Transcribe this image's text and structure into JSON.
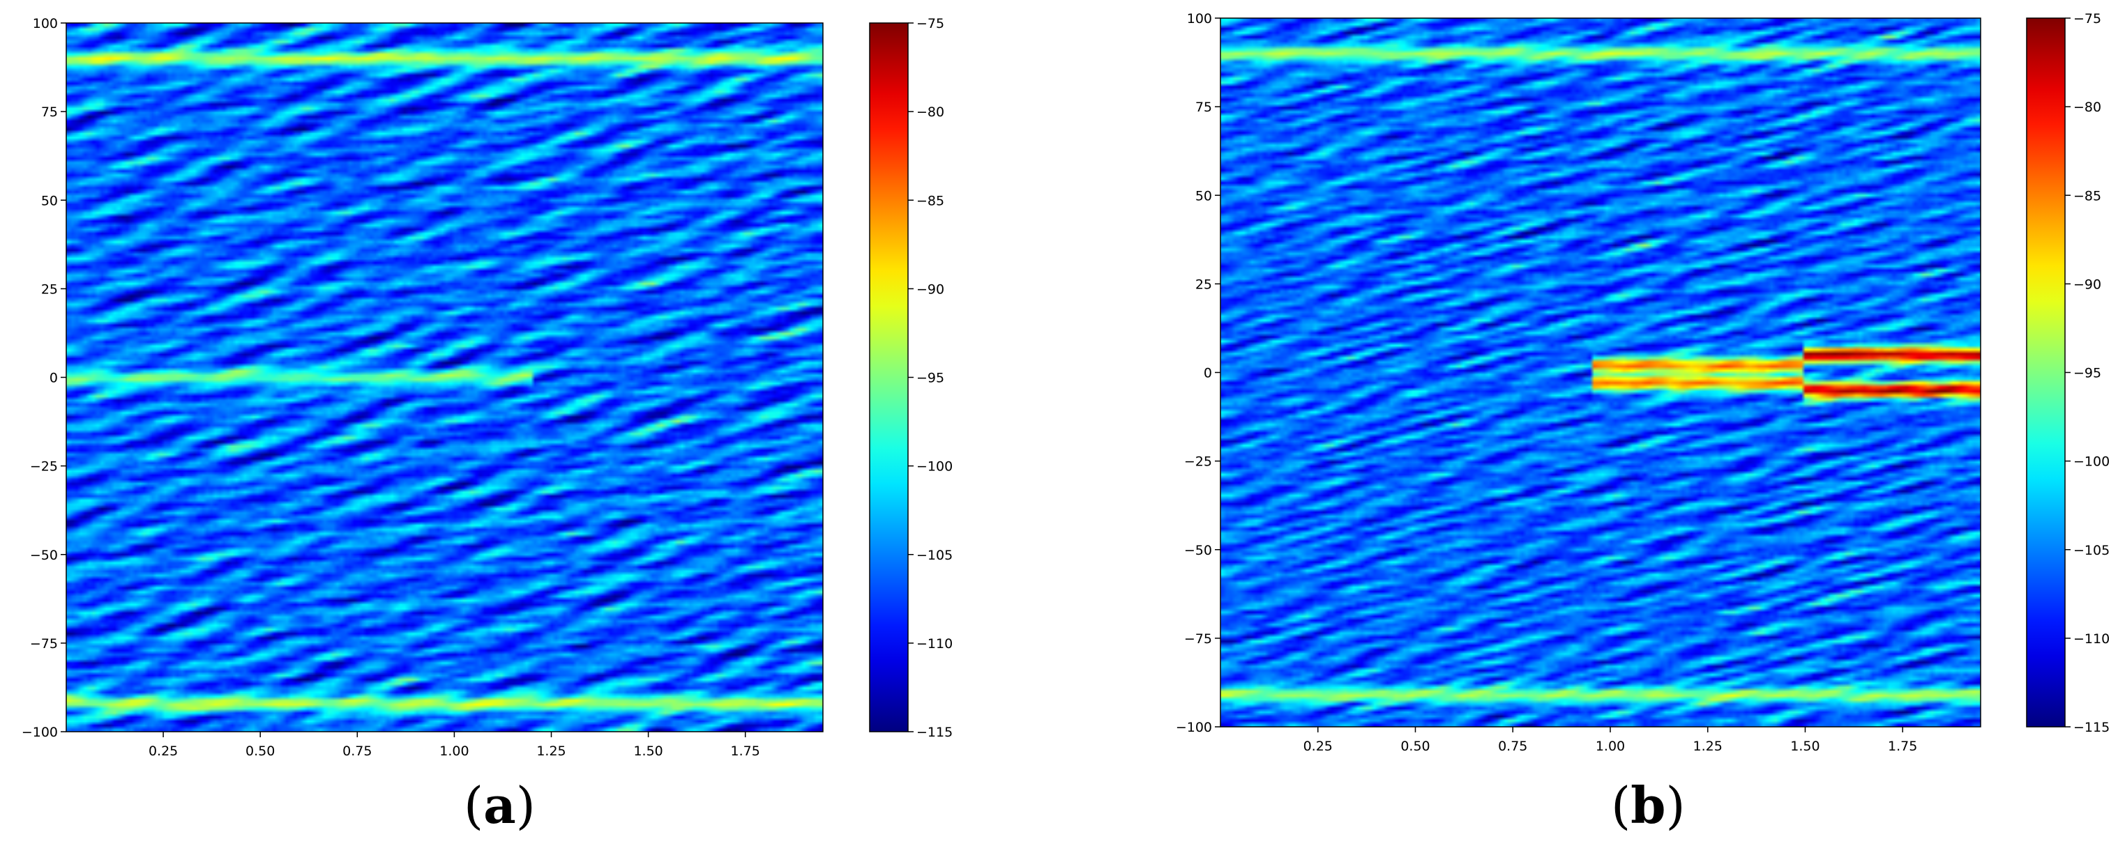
{
  "chart_data": [
    {
      "type": "heatmap",
      "panel_label": "a",
      "colormap": "jet",
      "x_ticks": [
        "0.25",
        "0.50",
        "0.75",
        "1.00",
        "1.25",
        "1.50",
        "1.75"
      ],
      "x_tick_values": [
        0.25,
        0.5,
        0.75,
        1.0,
        1.25,
        1.5,
        1.75
      ],
      "xlim": [
        0.0,
        1.95
      ],
      "y_ticks": [
        "100",
        "75",
        "50",
        "25",
        "0",
        "−25",
        "−50",
        "−75",
        "−100"
      ],
      "y_tick_values": [
        100,
        75,
        50,
        25,
        0,
        -25,
        -50,
        -75,
        -100
      ],
      "ylim": [
        -100,
        100
      ],
      "colorbar": {
        "range": [
          -115,
          -75
        ],
        "ticks": [
          "−75",
          "−80",
          "−85",
          "−90",
          "−95",
          "−100",
          "−105",
          "−110",
          "−115"
        ],
        "tick_values": [
          -75,
          -80,
          -85,
          -90,
          -95,
          -100,
          -105,
          -110,
          -115
        ]
      },
      "background_level": -106,
      "features": [
        {
          "kind": "horizontal_band",
          "y": 90,
          "x_range": [
            0.0,
            1.95
          ],
          "level": -93
        },
        {
          "kind": "horizontal_band",
          "y": 0,
          "x_range": [
            0.0,
            1.2
          ],
          "level": -96
        },
        {
          "kind": "horizontal_band",
          "y": -92,
          "x_range": [
            0.0,
            1.95
          ],
          "level": -93
        }
      ]
    },
    {
      "type": "heatmap",
      "panel_label": "b",
      "colormap": "jet",
      "x_ticks": [
        "0.25",
        "0.50",
        "0.75",
        "1.00",
        "1.25",
        "1.50",
        "1.75"
      ],
      "x_tick_values": [
        0.25,
        0.5,
        0.75,
        1.0,
        1.25,
        1.5,
        1.75
      ],
      "xlim": [
        0.0,
        1.95
      ],
      "y_ticks": [
        "100",
        "75",
        "50",
        "25",
        "0",
        "−25",
        "−50",
        "−75",
        "−100"
      ],
      "y_tick_values": [
        100,
        75,
        50,
        25,
        0,
        -25,
        -50,
        -75,
        -100
      ],
      "ylim": [
        -100,
        100
      ],
      "colorbar": {
        "range": [
          -115,
          -75
        ],
        "ticks": [
          "−75",
          "−80",
          "−85",
          "−90",
          "−95",
          "−100",
          "−105",
          "−110",
          "−115"
        ],
        "tick_values": [
          -75,
          -80,
          -85,
          -90,
          -95,
          -100,
          -105,
          -110,
          -115
        ]
      },
      "background_level": -106,
      "features": [
        {
          "kind": "horizontal_band",
          "y": 90,
          "x_range": [
            0.0,
            1.95
          ],
          "level": -94
        },
        {
          "kind": "horizontal_band",
          "y": -91,
          "x_range": [
            0.0,
            1.95
          ],
          "level": -94
        },
        {
          "kind": "horizontal_band",
          "y": 2,
          "x_range": [
            0.95,
            1.5
          ],
          "level": -85
        },
        {
          "kind": "horizontal_band",
          "y": -3,
          "x_range": [
            0.95,
            1.5
          ],
          "level": -85
        },
        {
          "kind": "horizontal_band",
          "y": 5,
          "x_range": [
            1.5,
            1.95
          ],
          "level": -77
        },
        {
          "kind": "horizontal_band",
          "y": -5,
          "x_range": [
            1.5,
            1.95
          ],
          "level": -77
        }
      ]
    }
  ]
}
